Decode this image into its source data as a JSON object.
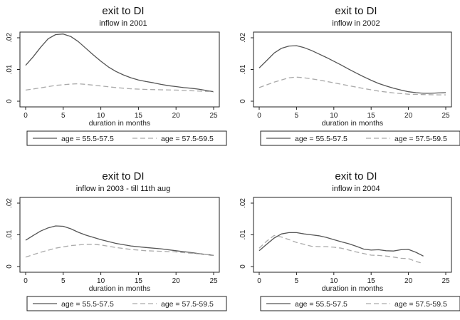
{
  "chart_data": [
    {
      "type": "line",
      "title": "exit to DI",
      "subtitle": "inflow in 2001",
      "xlabel": "duration in months",
      "ylabel": "",
      "xlim": [
        0,
        25
      ],
      "ylim": [
        0,
        0.02
      ],
      "xticks": [
        "0",
        "5",
        "10",
        "15",
        "20",
        "25"
      ],
      "yticks": [
        ".02",
        ".01",
        "0"
      ],
      "grid": false,
      "legend_position": "bottom",
      "series": [
        {
          "name": "age = 55.5-57.5",
          "style": "solid",
          "color": "#555555",
          "points": [
            [
              0,
              0.0113
            ],
            [
              1,
              0.014
            ],
            [
              2,
              0.017
            ],
            [
              3,
              0.0197
            ],
            [
              4,
              0.021
            ],
            [
              5,
              0.0212
            ],
            [
              6,
              0.0204
            ],
            [
              7,
              0.0188
            ],
            [
              8,
              0.0167
            ],
            [
              9,
              0.0146
            ],
            [
              10,
              0.0126
            ],
            [
              11,
              0.0108
            ],
            [
              12,
              0.0094
            ],
            [
              13,
              0.0083
            ],
            [
              14,
              0.0074
            ],
            [
              15,
              0.0067
            ],
            [
              16,
              0.0062
            ],
            [
              17,
              0.0058
            ],
            [
              18,
              0.0053
            ],
            [
              19,
              0.0049
            ],
            [
              20,
              0.0046
            ],
            [
              21,
              0.0043
            ],
            [
              22,
              0.0041
            ],
            [
              23,
              0.0038
            ],
            [
              24,
              0.0034
            ],
            [
              25,
              0.003
            ]
          ]
        },
        {
          "name": "age = 57.5-59.5",
          "style": "dashed",
          "color": "#aaaaaa",
          "points": [
            [
              0,
              0.0035
            ],
            [
              2,
              0.0042
            ],
            [
              4,
              0.005
            ],
            [
              6,
              0.0054
            ],
            [
              7,
              0.0055
            ],
            [
              8,
              0.0053
            ],
            [
              10,
              0.0048
            ],
            [
              12,
              0.0043
            ],
            [
              14,
              0.0039
            ],
            [
              16,
              0.0037
            ],
            [
              18,
              0.0036
            ],
            [
              20,
              0.0035
            ],
            [
              22,
              0.0033
            ],
            [
              24,
              0.0031
            ],
            [
              25,
              0.003
            ]
          ]
        }
      ]
    },
    {
      "type": "line",
      "title": "exit to DI",
      "subtitle": "inflow in 2002",
      "xlabel": "duration in months",
      "ylabel": "",
      "xlim": [
        0,
        25
      ],
      "ylim": [
        0,
        0.02
      ],
      "xticks": [
        "0",
        "5",
        "10",
        "15",
        "20",
        "25"
      ],
      "yticks": [
        ".02",
        ".01",
        "0"
      ],
      "grid": false,
      "legend_position": "bottom",
      "series": [
        {
          "name": "age = 55.5-57.5",
          "style": "solid",
          "color": "#555555",
          "points": [
            [
              0,
              0.0105
            ],
            [
              1,
              0.0128
            ],
            [
              2,
              0.0152
            ],
            [
              3,
              0.0167
            ],
            [
              4,
              0.0174
            ],
            [
              5,
              0.0175
            ],
            [
              6,
              0.0169
            ],
            [
              7,
              0.016
            ],
            [
              8,
              0.0149
            ],
            [
              9,
              0.0138
            ],
            [
              10,
              0.0126
            ],
            [
              11,
              0.0114
            ],
            [
              12,
              0.0101
            ],
            [
              13,
              0.0089
            ],
            [
              14,
              0.0077
            ],
            [
              15,
              0.0066
            ],
            [
              16,
              0.0056
            ],
            [
              17,
              0.0048
            ],
            [
              18,
              0.0041
            ],
            [
              19,
              0.0035
            ],
            [
              20,
              0.003
            ],
            [
              21,
              0.0027
            ],
            [
              22,
              0.0025
            ],
            [
              23,
              0.0025
            ],
            [
              24,
              0.0026
            ],
            [
              25,
              0.0027
            ]
          ]
        },
        {
          "name": "age = 57.5-59.5",
          "style": "dashed",
          "color": "#aaaaaa",
          "points": [
            [
              0,
              0.0043
            ],
            [
              2,
              0.006
            ],
            [
              4,
              0.0074
            ],
            [
              5,
              0.0076
            ],
            [
              6,
              0.0074
            ],
            [
              8,
              0.0067
            ],
            [
              10,
              0.0058
            ],
            [
              12,
              0.0049
            ],
            [
              14,
              0.004
            ],
            [
              16,
              0.0032
            ],
            [
              18,
              0.0026
            ],
            [
              20,
              0.0022
            ],
            [
              22,
              0.0021
            ],
            [
              24,
              0.002
            ],
            [
              25,
              0.002
            ]
          ]
        }
      ]
    },
    {
      "type": "line",
      "title": "exit to DI",
      "subtitle": "inflow in 2003 - till 11th aug",
      "xlabel": "duration in months",
      "ylabel": "",
      "xlim": [
        0,
        25
      ],
      "ylim": [
        0,
        0.02
      ],
      "xticks": [
        "0",
        "5",
        "10",
        "15",
        "20",
        "25"
      ],
      "yticks": [
        ".02",
        ".01",
        "0"
      ],
      "grid": false,
      "legend_position": "bottom",
      "series": [
        {
          "name": "age = 55.5-57.5",
          "style": "solid",
          "color": "#555555",
          "points": [
            [
              0,
              0.0083
            ],
            [
              1,
              0.0098
            ],
            [
              2,
              0.0112
            ],
            [
              3,
              0.0122
            ],
            [
              4,
              0.0128
            ],
            [
              5,
              0.0127
            ],
            [
              6,
              0.0119
            ],
            [
              7,
              0.0108
            ],
            [
              8,
              0.0099
            ],
            [
              10,
              0.0085
            ],
            [
              12,
              0.0073
            ],
            [
              14,
              0.0065
            ],
            [
              16,
              0.006
            ],
            [
              18,
              0.0056
            ],
            [
              20,
              0.005
            ],
            [
              22,
              0.0044
            ],
            [
              24,
              0.0038
            ],
            [
              25,
              0.0035
            ]
          ]
        },
        {
          "name": "age = 57.5-59.5",
          "style": "dashed",
          "color": "#aaaaaa",
          "points": [
            [
              0,
              0.003
            ],
            [
              2,
              0.0045
            ],
            [
              4,
              0.0058
            ],
            [
              6,
              0.0066
            ],
            [
              8,
              0.007
            ],
            [
              9,
              0.007
            ],
            [
              10,
              0.0068
            ],
            [
              12,
              0.006
            ],
            [
              14,
              0.0054
            ],
            [
              16,
              0.005
            ],
            [
              18,
              0.0048
            ],
            [
              20,
              0.0046
            ],
            [
              22,
              0.0042
            ],
            [
              24,
              0.0038
            ],
            [
              25,
              0.0036
            ]
          ]
        }
      ]
    },
    {
      "type": "line",
      "title": "exit to DI",
      "subtitle": "inflow in 2004",
      "xlabel": "duration in months",
      "ylabel": "",
      "xlim": [
        0,
        25
      ],
      "ylim": [
        0,
        0.02
      ],
      "xticks": [
        "0",
        "5",
        "10",
        "15",
        "20",
        "25"
      ],
      "yticks": [
        ".02",
        ".01",
        "0"
      ],
      "grid": false,
      "legend_position": "bottom",
      "series": [
        {
          "name": "age = 55.5-57.5",
          "style": "solid",
          "color": "#555555",
          "points": [
            [
              0,
              0.005
            ],
            [
              1,
              0.007
            ],
            [
              2,
              0.009
            ],
            [
              3,
              0.0103
            ],
            [
              4,
              0.0107
            ],
            [
              5,
              0.0107
            ],
            [
              6,
              0.0103
            ],
            [
              7,
              0.01
            ],
            [
              8,
              0.0097
            ],
            [
              9,
              0.0092
            ],
            [
              10,
              0.0085
            ],
            [
              11,
              0.0078
            ],
            [
              12,
              0.0072
            ],
            [
              13,
              0.0064
            ],
            [
              14,
              0.0055
            ],
            [
              15,
              0.0052
            ],
            [
              16,
              0.0053
            ],
            [
              17,
              0.005
            ],
            [
              18,
              0.0049
            ],
            [
              19,
              0.0053
            ],
            [
              20,
              0.0054
            ],
            [
              21,
              0.0045
            ],
            [
              22,
              0.0033
            ]
          ]
        },
        {
          "name": "age = 57.5-59.5",
          "style": "dashed",
          "color": "#aaaaaa",
          "points": [
            [
              0,
              0.0058
            ],
            [
              1,
              0.008
            ],
            [
              2,
              0.0098
            ],
            [
              3,
              0.0093
            ],
            [
              4,
              0.0085
            ],
            [
              5,
              0.0076
            ],
            [
              6,
              0.007
            ],
            [
              7,
              0.0064
            ],
            [
              8,
              0.0063
            ],
            [
              9,
              0.0063
            ],
            [
              10,
              0.0061
            ],
            [
              11,
              0.0058
            ],
            [
              12,
              0.0052
            ],
            [
              13,
              0.0046
            ],
            [
              14,
              0.0041
            ],
            [
              15,
              0.0036
            ],
            [
              16,
              0.0035
            ],
            [
              17,
              0.0033
            ],
            [
              18,
              0.003
            ],
            [
              19,
              0.0026
            ],
            [
              20,
              0.0025
            ],
            [
              21,
              0.0016
            ],
            [
              22,
              0.001
            ]
          ]
        }
      ]
    }
  ]
}
